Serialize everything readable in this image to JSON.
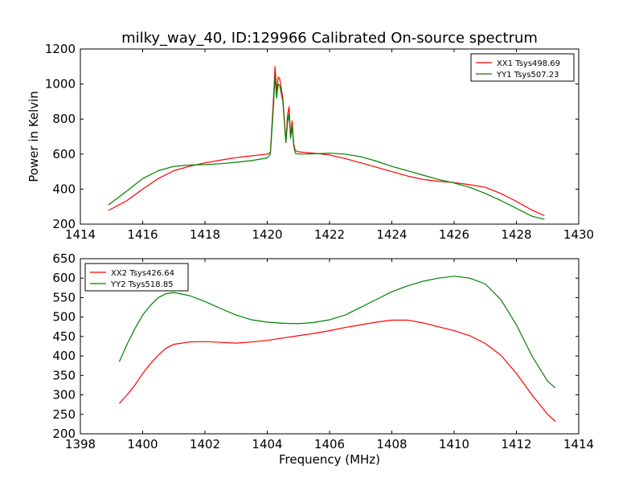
{
  "figure": {
    "title": "milky_way_40, ID:129966 Calibrated On-source spectrum"
  },
  "chart_data": [
    {
      "type": "line",
      "title": "milky_way_40, ID:129966 Calibrated On-source spectrum",
      "xlabel": "",
      "ylabel": "Power in Kelvin",
      "xlim": [
        1414,
        1430
      ],
      "ylim": [
        200,
        1200
      ],
      "xticks": [
        1414,
        1416,
        1418,
        1420,
        1422,
        1424,
        1426,
        1428,
        1430
      ],
      "yticks": [
        200,
        400,
        600,
        800,
        1000,
        1200
      ],
      "legend": "top-right",
      "series": [
        {
          "name": "XX1 Tsys498.69",
          "color": "#ff0000",
          "x": [
            1414.9,
            1415.5,
            1416,
            1416.5,
            1417,
            1417.5,
            1418,
            1418.5,
            1419,
            1419.5,
            1420,
            1420.1,
            1420.2,
            1420.25,
            1420.3,
            1420.35,
            1420.4,
            1420.5,
            1420.6,
            1420.65,
            1420.7,
            1420.75,
            1420.8,
            1420.85,
            1420.9,
            1421,
            1421.5,
            1422,
            1422.5,
            1423,
            1423.5,
            1424,
            1424.5,
            1425,
            1425.5,
            1426,
            1426.5,
            1427,
            1427.5,
            1428,
            1428.5,
            1428.9
          ],
          "y": [
            278,
            335,
            400,
            460,
            505,
            530,
            550,
            565,
            580,
            590,
            600,
            610,
            920,
            1100,
            960,
            1040,
            1030,
            920,
            670,
            820,
            870,
            700,
            790,
            660,
            620,
            613,
            605,
            595,
            575,
            550,
            525,
            500,
            475,
            455,
            445,
            437,
            425,
            410,
            375,
            330,
            280,
            248
          ]
        },
        {
          "name": "YY1 Tsys507.23",
          "color": "#008000",
          "x": [
            1414.9,
            1415.5,
            1416,
            1416.5,
            1417,
            1417.5,
            1418,
            1418.5,
            1419,
            1419.5,
            1420,
            1420.1,
            1420.2,
            1420.25,
            1420.3,
            1420.35,
            1420.4,
            1420.5,
            1420.6,
            1420.65,
            1420.7,
            1420.75,
            1420.8,
            1420.85,
            1420.9,
            1421,
            1421.5,
            1422,
            1422.5,
            1423,
            1423.5,
            1424,
            1424.5,
            1425,
            1425.5,
            1426,
            1426.5,
            1427,
            1427.5,
            1428,
            1428.5,
            1428.9
          ],
          "y": [
            310,
            390,
            460,
            505,
            530,
            537,
            540,
            545,
            553,
            563,
            578,
            600,
            880,
            1050,
            920,
            1000,
            990,
            900,
            665,
            780,
            830,
            690,
            760,
            650,
            605,
            600,
            602,
            605,
            600,
            585,
            560,
            530,
            505,
            480,
            455,
            435,
            410,
            375,
            335,
            290,
            245,
            228
          ]
        }
      ]
    },
    {
      "type": "line",
      "title": "",
      "xlabel": "Frequency (MHz)",
      "ylabel": "",
      "xlim": [
        1398,
        1414
      ],
      "ylim": [
        200,
        650
      ],
      "xticks": [
        1398,
        1400,
        1402,
        1404,
        1406,
        1408,
        1410,
        1412,
        1414
      ],
      "yticks": [
        200,
        250,
        300,
        350,
        400,
        450,
        500,
        550,
        600,
        650
      ],
      "legend": "top-left",
      "series": [
        {
          "name": "XX2 Tsys426.64",
          "color": "#ff0000",
          "x": [
            1399.25,
            1399.5,
            1399.75,
            1400,
            1400.25,
            1400.5,
            1400.75,
            1401,
            1401.5,
            1402,
            1402.5,
            1403,
            1403.5,
            1404,
            1404.5,
            1405,
            1405.5,
            1406,
            1406.5,
            1407,
            1407.5,
            1408,
            1408.5,
            1409,
            1409.5,
            1410,
            1410.5,
            1411,
            1411.5,
            1412,
            1412.5,
            1413,
            1413.25
          ],
          "y": [
            278,
            300,
            325,
            355,
            380,
            402,
            420,
            430,
            436,
            437,
            435,
            433,
            436,
            440,
            446,
            452,
            458,
            465,
            473,
            480,
            487,
            492,
            492,
            485,
            475,
            465,
            452,
            432,
            402,
            355,
            300,
            250,
            232
          ]
        },
        {
          "name": "YY2 Tsys518.85",
          "color": "#008000",
          "x": [
            1399.25,
            1399.5,
            1399.75,
            1400,
            1400.25,
            1400.5,
            1400.75,
            1401,
            1401.5,
            1402,
            1402.5,
            1403,
            1403.5,
            1404,
            1404.5,
            1405,
            1405.5,
            1406,
            1406.5,
            1407,
            1407.5,
            1408,
            1408.5,
            1409,
            1409.5,
            1410,
            1410.5,
            1411,
            1411.5,
            1412,
            1412.5,
            1413,
            1413.25
          ],
          "y": [
            385,
            430,
            470,
            505,
            530,
            550,
            560,
            563,
            555,
            540,
            522,
            505,
            493,
            487,
            484,
            483,
            486,
            493,
            505,
            525,
            545,
            565,
            580,
            592,
            600,
            605,
            600,
            585,
            545,
            480,
            400,
            335,
            318
          ]
        }
      ]
    }
  ]
}
